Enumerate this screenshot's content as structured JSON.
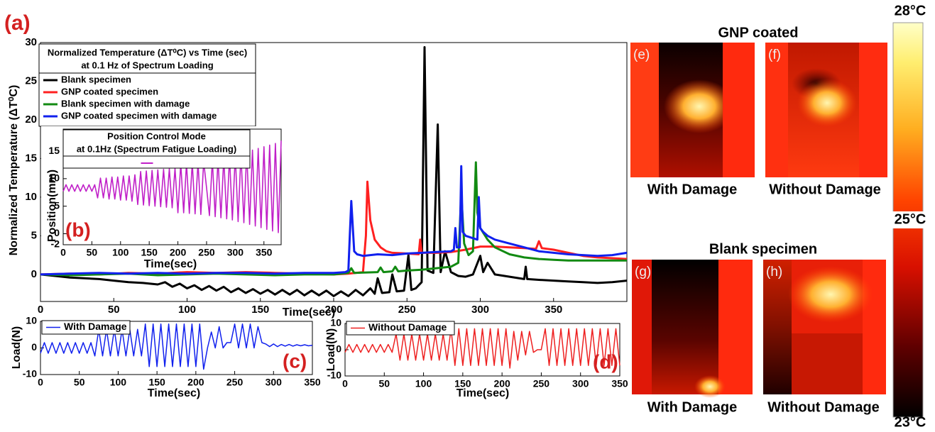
{
  "chart_data": [
    {
      "type": "line",
      "panel_label": "(a)",
      "title": "Normalized Temperature (ΔT⁰C)  vs Time (sec)",
      "subtitle": "at 0.1 Hz of Spectrum Loading",
      "xlabel": "Time(sec)",
      "ylabel": "Normalized Temperature (ΔT⁰C)",
      "xlim": [
        0,
        400
      ],
      "ylim": [
        -3.5,
        30
      ],
      "xticks": [
        0,
        50,
        100,
        150,
        200,
        250,
        300,
        350
      ],
      "yticks": [
        0,
        5,
        10,
        15,
        20,
        25,
        30
      ],
      "series": [
        {
          "name": "Blank specimen",
          "color": "#000000",
          "x": [
            0,
            10,
            20,
            30,
            40,
            50,
            60,
            70,
            80,
            85,
            90,
            95,
            100,
            105,
            110,
            115,
            120,
            125,
            130,
            135,
            140,
            145,
            150,
            155,
            160,
            165,
            170,
            175,
            180,
            185,
            190,
            195,
            200,
            205,
            210,
            215,
            220,
            225,
            228,
            230,
            233,
            238,
            240,
            243,
            248,
            251,
            253,
            256,
            260,
            262,
            264,
            268,
            271,
            273,
            276,
            280,
            285,
            290,
            295,
            300,
            302,
            305,
            310,
            320,
            330,
            331,
            332,
            340,
            350,
            360,
            370,
            380,
            390,
            400
          ],
          "values": [
            0,
            -0.2,
            -0.4,
            -0.5,
            -0.6,
            -0.8,
            -1.0,
            -1.1,
            -1.3,
            -1.0,
            -1.6,
            -1.2,
            -1.8,
            -1.4,
            -2.0,
            -1.5,
            -2.1,
            -1.6,
            -2.3,
            -1.8,
            -2.4,
            -1.9,
            -2.5,
            -2.0,
            -2.6,
            -2.0,
            -2.6,
            -2.0,
            -2.7,
            -2.1,
            -2.7,
            -2.1,
            -2.8,
            -2.2,
            -2.8,
            -2.0,
            -2.7,
            -1.8,
            -2.5,
            -0.5,
            -2.4,
            -2.3,
            0.0,
            -2.2,
            -2.1,
            2.5,
            -2.0,
            -1.8,
            -1.0,
            29.4,
            0.5,
            0.2,
            19.4,
            0.3,
            3.0,
            0.3,
            -0.2,
            -0.3,
            0.0,
            2.4,
            0.3,
            1.5,
            0.0,
            -0.3,
            -0.6,
            1.0,
            -0.6,
            -0.7,
            -0.8,
            -0.9,
            -1.0,
            -1.1,
            -1.0,
            -0.8
          ]
        },
        {
          "name": "GNP coated specimen",
          "color": "#ff2020",
          "x": [
            0,
            20,
            40,
            60,
            80,
            100,
            120,
            140,
            160,
            180,
            200,
            210,
            220,
            222,
            223,
            225,
            228,
            232,
            236,
            240,
            250,
            258,
            259,
            260,
            270,
            280,
            290,
            300,
            310,
            320,
            330,
            338,
            340,
            342,
            350,
            360,
            370,
            380,
            390,
            400
          ],
          "values": [
            0,
            0.1,
            0,
            0.2,
            0.1,
            0.3,
            0.2,
            0.3,
            0.2,
            0.1,
            0,
            0.1,
            0.3,
            5,
            12,
            7,
            4.5,
            3.5,
            3.0,
            2.8,
            2.7,
            2.6,
            4.5,
            2.8,
            2.8,
            2.9,
            3.2,
            3.6,
            3.6,
            3.5,
            3.4,
            3.3,
            4.3,
            3.4,
            3.2,
            2.8,
            2.4,
            2.2,
            2.1,
            2.0
          ]
        },
        {
          "name": "Blank specimen with damage",
          "color": "#128a12",
          "x": [
            0,
            20,
            40,
            60,
            80,
            100,
            120,
            140,
            160,
            180,
            200,
            210,
            212,
            214,
            230,
            232,
            234,
            240,
            242,
            244,
            250,
            260,
            270,
            280,
            285,
            287,
            289,
            292,
            295,
            297,
            298,
            300,
            305,
            310,
            320,
            330,
            340,
            350,
            360,
            380,
            400
          ],
          "values": [
            0,
            -0.1,
            0,
            0.1,
            -0.1,
            0,
            0.1,
            0,
            -0.1,
            0,
            0,
            0.2,
            0.8,
            0.2,
            0.3,
            0.9,
            0.3,
            0.4,
            1.0,
            0.4,
            0.5,
            0.6,
            0.8,
            1.0,
            1.5,
            10.5,
            4,
            2.5,
            3,
            14.5,
            8,
            6,
            4.5,
            3.5,
            2.6,
            2.2,
            2.0,
            1.9,
            1.8,
            1.8,
            1.8
          ]
        },
        {
          "name": "GNP coated specimen with damage",
          "color": "#1020ee",
          "x": [
            0,
            20,
            40,
            60,
            80,
            100,
            120,
            140,
            160,
            180,
            200,
            208,
            210,
            211,
            212,
            214,
            216,
            220,
            230,
            240,
            250,
            260,
            270,
            280,
            282,
            283,
            284,
            286,
            287,
            288,
            290,
            298,
            299,
            300,
            302,
            305,
            310,
            320,
            330,
            340,
            350,
            360,
            370,
            380,
            390,
            400
          ],
          "values": [
            0,
            0.1,
            0.2,
            0.1,
            0.2,
            0.1,
            0.2,
            0.2,
            0.1,
            0.2,
            0.2,
            0.3,
            0.5,
            5,
            9.5,
            3,
            2.6,
            2.4,
            2.6,
            2.5,
            2.7,
            2.8,
            2.9,
            3.0,
            3.2,
            6,
            3.5,
            3.5,
            14,
            5.5,
            5,
            4.5,
            10,
            6,
            5.5,
            5,
            4.5,
            4,
            3.5,
            3,
            2.8,
            2.6,
            2.5,
            2.4,
            2.5,
            2.8
          ]
        }
      ]
    },
    {
      "type": "line",
      "panel_label": "(b)",
      "title": "Position Control Mode",
      "subtitle": "at 0.1Hz (Spectrum Fatigue Loading)",
      "xlabel": "Time(sec)",
      "ylabel": "Position(mm)",
      "xlim": [
        0,
        380
      ],
      "ylim": [
        -2,
        19
      ],
      "xticks": [
        0,
        50,
        100,
        150,
        200,
        250,
        300,
        350
      ],
      "yticks": [
        -2,
        0,
        5,
        10,
        15
      ],
      "series": [
        {
          "color": "#c020c8",
          "x": [
            0,
            5,
            10,
            15,
            20,
            25,
            30,
            35,
            40,
            45,
            50,
            55,
            60,
            65,
            70,
            75,
            80,
            85,
            90,
            95,
            100,
            105,
            110,
            115,
            120,
            125,
            130,
            135,
            140,
            145,
            150,
            155,
            160,
            165,
            170,
            175,
            180,
            185,
            190,
            195,
            200,
            205,
            210,
            215,
            220,
            225,
            230,
            235,
            240,
            245,
            250,
            255,
            260,
            265,
            270,
            275,
            280,
            285,
            290,
            295,
            300,
            305,
            310,
            315,
            320,
            325,
            330,
            335,
            340,
            345,
            350,
            355,
            360,
            365,
            370,
            375,
            380
          ],
          "values": [
            7.7,
            8.9,
            7.7,
            8.9,
            7.7,
            8.9,
            7.7,
            8.9,
            7.7,
            8.9,
            7.7,
            8.9,
            6.5,
            10.1,
            6.5,
            10.1,
            6.3,
            10.3,
            6.3,
            10.3,
            6.1,
            10.5,
            6.1,
            10.5,
            5.9,
            10.7,
            5.3,
            11.3,
            5.2,
            11.4,
            5.1,
            11.5,
            5.0,
            11.6,
            4.9,
            11.7,
            4.8,
            11.8,
            4.7,
            11.9,
            3.8,
            12.8,
            3.8,
            12.8,
            3.7,
            12.9,
            3.6,
            13.0,
            3.5,
            13.1,
            8.3,
            3.3,
            13.4,
            3.1,
            13.6,
            2.9,
            13.8,
            2.7,
            14.0,
            2.5,
            14.3,
            2.2,
            14.6,
            2.0,
            14.9,
            1.7,
            15.2,
            1.4,
            15.5,
            1.1,
            15.8,
            0.8,
            16.1,
            0.5,
            16.4,
            0.2,
            16.9
          ]
        }
      ]
    },
    {
      "type": "line",
      "panel_label": "(c)",
      "xlabel": "Time(sec)",
      "ylabel": "Load(N)",
      "xlim": [
        0,
        350
      ],
      "ylim": [
        -10,
        10
      ],
      "xticks": [
        0,
        50,
        100,
        150,
        200,
        250,
        300,
        350
      ],
      "yticks": [
        -10,
        0,
        10
      ],
      "series": [
        {
          "name": "With Damage",
          "color": "#1020ee",
          "x": [
            0,
            5,
            10,
            15,
            20,
            25,
            30,
            35,
            40,
            45,
            50,
            55,
            60,
            65,
            70,
            75,
            80,
            85,
            90,
            95,
            100,
            105,
            110,
            115,
            120,
            125,
            130,
            135,
            140,
            145,
            150,
            155,
            160,
            165,
            170,
            175,
            180,
            185,
            190,
            195,
            200,
            205,
            210,
            215,
            220,
            225,
            230,
            235,
            240,
            245,
            250,
            255,
            260,
            265,
            270,
            275,
            280,
            285,
            290,
            295,
            300,
            305,
            310,
            315,
            320,
            325,
            330,
            335,
            340,
            345,
            350
          ],
          "values": [
            -2,
            2,
            -2,
            2,
            -2,
            2,
            -2,
            2,
            -2,
            2,
            -2,
            2,
            -2,
            2,
            -3,
            7,
            -3,
            7,
            -3,
            7,
            -3,
            7,
            -3,
            7,
            -3,
            7,
            -3,
            9,
            -7,
            9,
            -7,
            9,
            -7,
            9,
            -7,
            9,
            -7,
            9,
            -7,
            9,
            -7,
            9,
            -8,
            0,
            6,
            0,
            8,
            0,
            2,
            2,
            9,
            0,
            9,
            0,
            9,
            0,
            8,
            2,
            1.5,
            0.5,
            1.5,
            0.5,
            1.3,
            0.7,
            1.3,
            0.7,
            1.2,
            0.8,
            1.2,
            0.8,
            1
          ]
        }
      ]
    },
    {
      "type": "line",
      "panel_label": "(d)",
      "xlabel": "Time(sec)",
      "ylabel": "Load(N)",
      "xlim": [
        0,
        350
      ],
      "ylim": [
        -10,
        10
      ],
      "xticks": [
        0,
        50,
        100,
        150,
        200,
        250,
        300,
        350
      ],
      "yticks": [
        -10,
        0,
        10
      ],
      "series": [
        {
          "name": "Without Damage",
          "color": "#ee2020",
          "x": [
            0,
            5,
            10,
            15,
            20,
            25,
            30,
            35,
            40,
            45,
            50,
            55,
            60,
            65,
            70,
            75,
            80,
            85,
            90,
            95,
            100,
            105,
            110,
            115,
            120,
            125,
            130,
            135,
            140,
            145,
            150,
            155,
            160,
            165,
            170,
            175,
            180,
            185,
            190,
            195,
            200,
            205,
            210,
            215,
            220,
            225,
            230,
            235,
            240,
            245,
            250,
            255,
            260,
            265,
            270,
            275,
            280,
            285,
            290,
            295,
            300,
            305,
            310,
            315,
            320,
            325,
            330,
            335,
            340,
            345,
            350
          ],
          "values": [
            -1,
            2,
            -1,
            2,
            -1,
            2,
            -1,
            2,
            -1,
            2,
            -1,
            2,
            -1,
            6,
            -4,
            6,
            -4,
            6,
            -4,
            6,
            -4,
            6,
            -4,
            6,
            -4,
            6,
            -4,
            8,
            -6,
            8,
            -6,
            8,
            -6,
            8,
            -6,
            8,
            -6,
            8,
            -6,
            8,
            -6,
            8,
            -7,
            7,
            -4,
            7,
            -2,
            7,
            -1,
            0,
            0,
            8,
            -6,
            8,
            -6,
            8,
            -6,
            8,
            -6,
            8,
            -6,
            8,
            -6,
            8,
            -6,
            8,
            -6,
            8,
            -6,
            8,
            -6
          ]
        }
      ]
    }
  ],
  "thermal_images": {
    "groups": [
      {
        "title": "GNP coated",
        "panels": [
          {
            "label": "(e)",
            "caption": "With Damage"
          },
          {
            "label": "(f)",
            "caption": "Without Damage"
          }
        ]
      },
      {
        "title": "Blank specimen",
        "panels": [
          {
            "label": "(g)",
            "caption": "With Damage"
          },
          {
            "label": "(h)",
            "caption": "Without Damage"
          }
        ]
      }
    ],
    "colorbar": {
      "labels": [
        "28°C",
        "25°C",
        "23°C"
      ]
    }
  }
}
